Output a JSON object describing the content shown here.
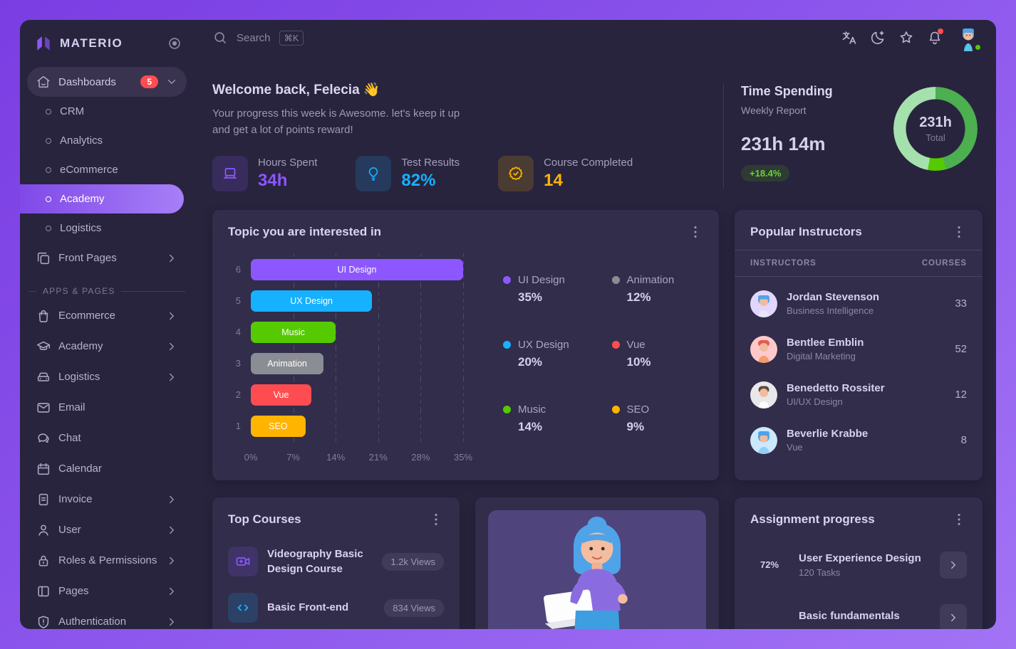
{
  "app": {
    "name": "MATERIO"
  },
  "topbar": {
    "search_placeholder": "Search",
    "search_shortcut": "⌘K"
  },
  "sidebar": {
    "dashboards": {
      "label": "Dashboards",
      "badge": "5"
    },
    "dashboard_items": [
      {
        "label": "CRM"
      },
      {
        "label": "Analytics"
      },
      {
        "label": "eCommerce"
      },
      {
        "label": "Academy"
      },
      {
        "label": "Logistics"
      }
    ],
    "front_pages_label": "Front Pages",
    "section_label": "APPS & PAGES",
    "apps_items": [
      {
        "label": "Ecommerce"
      },
      {
        "label": "Academy"
      },
      {
        "label": "Logistics"
      },
      {
        "label": "Email"
      },
      {
        "label": "Chat"
      },
      {
        "label": "Calendar"
      },
      {
        "label": "Invoice"
      },
      {
        "label": "User"
      },
      {
        "label": "Roles & Permissions"
      },
      {
        "label": "Pages"
      },
      {
        "label": "Authentication"
      }
    ]
  },
  "welcome": {
    "title": "Welcome back, Felecia 👋",
    "subtitle_line1": "Your progress this week is Awesome. let's keep it up",
    "subtitle_line2": "and get a lot of points reward!",
    "stats": [
      {
        "label": "Hours Spent",
        "value": "34h",
        "color": "#8C57FF"
      },
      {
        "label": "Test Results",
        "value": "82%",
        "color": "#16B1FF"
      },
      {
        "label": "Course Completed",
        "value": "14",
        "color": "#FFB400"
      }
    ]
  },
  "time_spending": {
    "title": "Time Spending",
    "subtitle": "Weekly Report",
    "value": "231h 14m",
    "badge": "+18.4%",
    "donut_center_value": "231h",
    "donut_center_label": "Total",
    "chart_data": {
      "type": "pie",
      "segments": [
        {
          "value": 46,
          "color": "#4CAF50"
        },
        {
          "value": 7,
          "color": "#56CA00"
        },
        {
          "value": 47,
          "color": "#A5E1AD"
        }
      ]
    }
  },
  "topics": {
    "title": "Topic you are interested in",
    "chart_data": {
      "type": "bar",
      "orientation": "horizontal",
      "xlim": [
        0,
        35
      ],
      "x_ticks": [
        "0%",
        "7%",
        "14%",
        "21%",
        "28%",
        "35%"
      ],
      "rows": [
        {
          "rank": "6",
          "label": "UI Design",
          "value": 35,
          "color": "#8C57FF"
        },
        {
          "rank": "5",
          "label": "UX Design",
          "value": 20,
          "color": "#16B1FF"
        },
        {
          "rank": "4",
          "label": "Music",
          "value": 14,
          "color": "#56CA00"
        },
        {
          "rank": "3",
          "label": "Animation",
          "value": 12,
          "color": "#8A8D93"
        },
        {
          "rank": "2",
          "label": "Vue",
          "value": 10,
          "color": "#FF4C51"
        },
        {
          "rank": "1",
          "label": "SEO",
          "value": 9,
          "color": "#FFB400"
        }
      ]
    },
    "legend": [
      {
        "label": "UI Design",
        "value": "35%",
        "color": "#8C57FF"
      },
      {
        "label": "Animation",
        "value": "12%",
        "color": "#8A8D93"
      },
      {
        "label": "UX Design",
        "value": "20%",
        "color": "#16B1FF"
      },
      {
        "label": "Vue",
        "value": "10%",
        "color": "#FF4C51"
      },
      {
        "label": "Music",
        "value": "14%",
        "color": "#56CA00"
      },
      {
        "label": "SEO",
        "value": "9%",
        "color": "#FFB400"
      }
    ]
  },
  "instructors": {
    "title": "Popular Instructors",
    "col_instructors": "INSTRUCTORS",
    "col_courses": "COURSES",
    "rows": [
      {
        "name": "Jordan Stevenson",
        "role": "Business Intelligence",
        "courses": "33"
      },
      {
        "name": "Bentlee Emblin",
        "role": "Digital Marketing",
        "courses": "52"
      },
      {
        "name": "Benedetto Rossiter",
        "role": "UI/UX Design",
        "courses": "12"
      },
      {
        "name": "Beverlie Krabbe",
        "role": "Vue",
        "courses": "8"
      }
    ]
  },
  "top_courses": {
    "title": "Top Courses",
    "rows": [
      {
        "title": "Videography Basic Design Course",
        "views": "1.2k Views",
        "color": "#8C57FF"
      },
      {
        "title": "Basic Front-end",
        "views": "834 Views",
        "color": "#16B1FF"
      }
    ]
  },
  "assignment": {
    "title": "Assignment progress",
    "rows": [
      {
        "title": "User Experience Design",
        "tasks": "120 Tasks",
        "progress": "72%",
        "progress_value": 72,
        "color": "#8C57FF"
      },
      {
        "title": "Basic fundamentals",
        "tasks": "",
        "progress": "",
        "color": "#56CA00"
      }
    ]
  }
}
